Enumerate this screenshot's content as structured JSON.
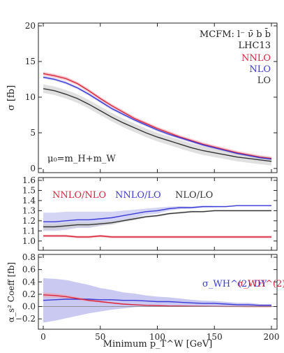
{
  "chart_data": [
    {
      "type": "line",
      "panel": "cross-section",
      "ylabel": "σ [fb]",
      "xlim": [
        0,
        200
      ],
      "ylim": [
        0,
        20
      ],
      "yticks": [
        "0",
        "5",
        "10",
        "15",
        "20"
      ],
      "xticks": [
        0,
        50,
        100,
        150,
        200
      ],
      "annotations": {
        "process": "MCFM: l⁻ ν̄ b b̄",
        "collider": "LHC13",
        "scale": "μ₀=m_H+m_W"
      },
      "legend_position": "top-right",
      "x": [
        0,
        10,
        20,
        30,
        40,
        50,
        60,
        70,
        80,
        90,
        100,
        110,
        120,
        130,
        140,
        150,
        160,
        170,
        180,
        190,
        200
      ],
      "series": [
        {
          "name": "NNLO",
          "color": "#d7263d",
          "band": "#f2a0a8",
          "values": [
            13.3,
            13.0,
            12.6,
            11.9,
            10.9,
            9.8,
            8.8,
            7.9,
            7.0,
            6.3,
            5.6,
            5.0,
            4.4,
            3.9,
            3.4,
            3.0,
            2.6,
            2.2,
            1.9,
            1.6,
            1.4
          ],
          "band_half_width": 0.25
        },
        {
          "name": "NLO",
          "color": "#3b3bd6",
          "band": "#b7b7ee",
          "values": [
            12.8,
            12.5,
            12.0,
            11.3,
            10.4,
            9.4,
            8.4,
            7.6,
            6.8,
            6.1,
            5.4,
            4.8,
            4.3,
            3.8,
            3.3,
            2.9,
            2.5,
            2.1,
            1.8,
            1.5,
            1.3
          ],
          "band_half_width": 0.2
        },
        {
          "name": "LO",
          "color": "#333333",
          "band": "#cccccc",
          "values": [
            11.2,
            10.9,
            10.4,
            9.8,
            9.0,
            8.1,
            7.2,
            6.4,
            5.7,
            5.0,
            4.4,
            3.9,
            3.4,
            2.9,
            2.5,
            2.2,
            1.9,
            1.6,
            1.4,
            1.2,
            1.0
          ],
          "band_half_width": 0.6
        }
      ]
    },
    {
      "type": "line",
      "panel": "ratios",
      "xlim": [
        0,
        200
      ],
      "ylim": [
        0.95,
        1.6
      ],
      "yticks": [
        "1.0",
        "1.1",
        "1.2",
        "1.3",
        "1.4",
        "1.5",
        "1.6"
      ],
      "x": [
        0,
        10,
        20,
        30,
        40,
        50,
        60,
        70,
        80,
        90,
        100,
        110,
        120,
        130,
        140,
        150,
        160,
        170,
        180,
        190,
        200
      ],
      "series": [
        {
          "name": "NNLO/NLO",
          "color": "#d7263d",
          "band": "#f2a0a8",
          "values": [
            1.05,
            1.05,
            1.05,
            1.04,
            1.04,
            1.05,
            1.04,
            1.04,
            1.04,
            1.04,
            1.04,
            1.04,
            1.04,
            1.04,
            1.04,
            1.04,
            1.04,
            1.04,
            1.04,
            1.04,
            1.04
          ],
          "band_half_width": 0.012
        },
        {
          "name": "NNLO/LO",
          "color": "#3b3bd6",
          "band": "#b7b7ee",
          "values": [
            1.19,
            1.19,
            1.2,
            1.21,
            1.21,
            1.22,
            1.23,
            1.25,
            1.27,
            1.29,
            1.3,
            1.32,
            1.33,
            1.33,
            1.34,
            1.34,
            1.34,
            1.35,
            1.35,
            1.35,
            1.35
          ],
          "band_half_width": [
            0.09,
            0.09,
            0.09,
            0.08,
            0.08,
            0.07,
            0.06,
            0.05,
            0.04,
            0.03,
            0.03,
            0.02,
            0.015,
            0.01,
            0.01,
            0.008,
            0.006,
            0.005,
            0.005,
            0.005,
            0.005
          ]
        },
        {
          "name": "NLO/LO",
          "color": "#333333",
          "band": "#cccccc",
          "values": [
            1.14,
            1.14,
            1.15,
            1.16,
            1.16,
            1.17,
            1.18,
            1.2,
            1.22,
            1.24,
            1.25,
            1.27,
            1.28,
            1.29,
            1.29,
            1.3,
            1.3,
            1.3,
            1.3,
            1.3,
            1.3
          ],
          "band_half_width": [
            0.03,
            0.03,
            0.03,
            0.025,
            0.025,
            0.02,
            0.02,
            0.015,
            0.015,
            0.012,
            0.012,
            0.01,
            0.01,
            0.01,
            0.008,
            0.008,
            0.008,
            0.008,
            0.008,
            0.008,
            0.008
          ]
        }
      ]
    },
    {
      "type": "line",
      "panel": "coefficients",
      "ylabel": "α_s² Coeff [fb]",
      "xlabel": "Minimum p_T^W [GeV]",
      "xlim": [
        0,
        200
      ],
      "ylim": [
        -0.3,
        0.8
      ],
      "yticks": [
        "−0.2",
        "0.0",
        "0.2",
        "0.4",
        "0.6",
        "0.8"
      ],
      "xticks": [
        "0",
        "50",
        "100",
        "150",
        "200"
      ],
      "x": [
        0,
        10,
        20,
        30,
        40,
        50,
        60,
        70,
        80,
        90,
        100,
        110,
        120,
        130,
        140,
        150,
        160,
        170,
        180,
        190,
        200
      ],
      "series": [
        {
          "name": "σ_WH^(2) DY",
          "color": "#3b3bd6",
          "band": "#b7b7ee",
          "values": [
            0.1,
            0.11,
            0.12,
            0.12,
            0.12,
            0.11,
            0.11,
            0.1,
            0.1,
            0.09,
            0.08,
            0.08,
            0.07,
            0.06,
            0.05,
            0.05,
            0.04,
            0.03,
            0.03,
            0.02,
            0.02
          ],
          "band_half_width": [
            0.36,
            0.34,
            0.31,
            0.27,
            0.23,
            0.19,
            0.16,
            0.13,
            0.11,
            0.09,
            0.08,
            0.07,
            0.06,
            0.05,
            0.045,
            0.04,
            0.035,
            0.03,
            0.03,
            0.02,
            0.02
          ]
        },
        {
          "name": "σ_WH^(2) y_t",
          "color": "#d7263d",
          "band": "#f2a0a8",
          "values": [
            0.19,
            0.18,
            0.16,
            0.13,
            0.1,
            0.08,
            0.06,
            0.04,
            0.03,
            0.02,
            0.015,
            0.01,
            0.008,
            0.005,
            0.004,
            0.003,
            0.002,
            0.002,
            0.001,
            0.001,
            0.001
          ],
          "band_half_width": [
            0.04,
            0.035,
            0.03,
            0.025,
            0.02,
            0.015,
            0.012,
            0.01,
            0.008,
            0.006,
            0.005,
            0.004,
            0.003,
            0.003,
            0.002,
            0.002,
            0.002,
            0.002,
            0.001,
            0.001,
            0.001
          ]
        }
      ]
    }
  ],
  "labels": {
    "p1_ylabel": "σ [fb]",
    "p3_ylabel": "α_s² Coeff [fb]",
    "xlabel": "Minimum p_T^W  [GeV]"
  }
}
